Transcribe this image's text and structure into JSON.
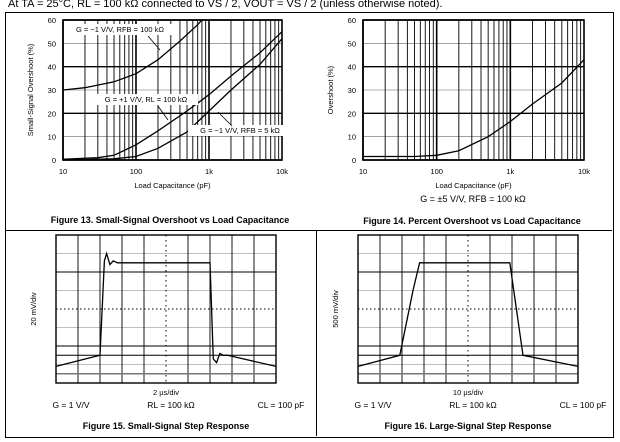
{
  "header": "At TA = 25°C, RL = 100 kΩ connected to VS / 2, VOUT = VS / 2 (unless otherwise noted).",
  "chart_data": [
    {
      "type": "line",
      "title": "Figure 13. Small-Signal Overshoot vs Load Capacitance",
      "xlabel": "Load Capacitance (pF)",
      "ylabel": "Small-Signal Overshoot (%)",
      "xscale": "log",
      "xlim": [
        10,
        10000
      ],
      "ylim": [
        0,
        60
      ],
      "xticks": [
        {
          "v": 10,
          "l": "10"
        },
        {
          "v": 100,
          "l": "100"
        },
        {
          "v": 1000,
          "l": "1k"
        },
        {
          "v": 10000,
          "l": "10k"
        }
      ],
      "yticks": [
        0,
        10,
        20,
        30,
        40,
        50,
        60
      ],
      "grid": true,
      "series": [
        {
          "name": "G = −1 V/V, RFB = 100 kΩ",
          "x": [
            10,
            20,
            50,
            100,
            200,
            400,
            700,
            800
          ],
          "y": [
            30,
            31,
            33.5,
            37,
            43,
            51,
            58,
            60
          ]
        },
        {
          "name": "G = +1 V/V, RL = 100 kΩ",
          "x": [
            10,
            30,
            50,
            100,
            200,
            500,
            1000,
            2000,
            5000,
            10000
          ],
          "y": [
            0.3,
            1,
            2,
            6.5,
            12.5,
            21,
            28,
            36,
            46,
            55
          ]
        },
        {
          "name": "G = −1 V/V, RFB = 5 kΩ",
          "x": [
            10,
            50,
            100,
            200,
            500,
            1000,
            2000,
            5000,
            10000
          ],
          "y": [
            0,
            0.5,
            1.5,
            5,
            12,
            21,
            30,
            41,
            52
          ]
        }
      ]
    },
    {
      "type": "line",
      "title": "Figure 14. Percent Overshoot vs Load Capacitance",
      "subtitle": "G = ±5 V/V, RFB = 100 kΩ",
      "xlabel": "Load Capacitance (pF)",
      "ylabel": "Overshoot (%)",
      "xscale": "log",
      "xlim": [
        10,
        10000
      ],
      "ylim": [
        0,
        60
      ],
      "xticks": [
        {
          "v": 10,
          "l": "10"
        },
        {
          "v": 100,
          "l": "100"
        },
        {
          "v": 1000,
          "l": "1k"
        },
        {
          "v": 10000,
          "l": "10k"
        }
      ],
      "yticks": [
        0,
        10,
        20,
        30,
        40,
        50,
        60
      ],
      "grid": true,
      "series": [
        {
          "name": "G = ±5 V/V, RFB = 100 kΩ",
          "x": [
            10,
            50,
            100,
            200,
            500,
            1000,
            2000,
            5000,
            10000
          ],
          "y": [
            1.5,
            1.5,
            2,
            4,
            10,
            16.5,
            24,
            33,
            43
          ]
        }
      ]
    },
    {
      "type": "line",
      "title": "Figure 15. Small-Signal Step Response",
      "xlabel": "2 µs/div",
      "ylabel": "20 mV/div",
      "conditions": [
        "G = 1 V/V",
        "RL = 100 kΩ",
        "CL = 100 pF"
      ],
      "xlim": [
        0,
        10
      ],
      "ylim": [
        0,
        8
      ],
      "series": [
        {
          "name": "output",
          "x": [
            0,
            2.0,
            2.2,
            2.3,
            2.45,
            2.6,
            2.8,
            7.0,
            7.15,
            7.3,
            7.45,
            7.6,
            7.8,
            10
          ],
          "y": [
            1.5,
            1.5,
            6.6,
            7.0,
            6.4,
            6.6,
            6.5,
            6.5,
            1.3,
            1.1,
            1.6,
            1.5,
            1.5,
            1.5
          ]
        }
      ]
    },
    {
      "type": "line",
      "title": "Figure 16. Large-Signal Step Response",
      "xlabel": "10 µs/div",
      "ylabel": "500 mV/div",
      "conditions": [
        "G = 1 V/V",
        "RL = 100 kΩ",
        "CL = 100 pF"
      ],
      "xlim": [
        0,
        10
      ],
      "ylim": [
        0,
        8
      ],
      "series": [
        {
          "name": "output",
          "x": [
            0,
            1.9,
            2.5,
            2.8,
            6.9,
            7.5,
            10
          ],
          "y": [
            1.5,
            1.5,
            5,
            6.5,
            6.5,
            1.5,
            1.5
          ]
        }
      ]
    }
  ]
}
